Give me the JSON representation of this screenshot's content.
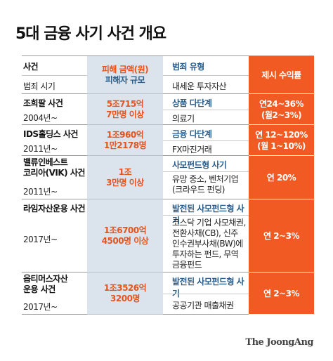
{
  "title": "5대 금융 사기 사건 개요",
  "headers": {
    "case": "사건",
    "period": "범죄 시기",
    "damage_amount": "피해 금액(원)",
    "victims": "피해자 규모",
    "crime_type": "범죄 유형",
    "details": "내세운 투자자산",
    "returns": "제시 수익률"
  },
  "rows": [
    {
      "name": "조희팔 사건",
      "year": "2004년~",
      "amount": "5조715억",
      "victims": "7만명 이상",
      "type": "상품 다단계",
      "asset": "의료기",
      "returns_line1": "연24~36%",
      "returns_line2": "(월2~3%)"
    },
    {
      "name": "IDS홀딩스 사건",
      "year": "2011년~",
      "amount": "1조960억",
      "victims": "1만2178명",
      "type": "금융 다단계",
      "asset": "FX마진거래",
      "returns_line1": "연 12~120%",
      "returns_line2": "(월 1~10%)"
    },
    {
      "name_line1": "밸류인베스트",
      "name_line2": "코리아(VIK) 사건",
      "year": "2011년~",
      "amount": "1조",
      "victims": "3만명 이상",
      "type": "사모펀드형 사기",
      "asset_line1": "유망 중소, 벤처기업",
      "asset_line2": "(크라우드 펀딩)",
      "returns_line1": "연 20%"
    },
    {
      "name": "라임자산운용 사건",
      "year": "2017년~",
      "amount": "1조6700억",
      "victims": "4500명 이상",
      "type": "발전된 사모펀드형 사기",
      "asset_line1": "코스닥 기업 사모채권,",
      "asset_line2": "전환사채(CB), 신주",
      "asset_line3": "인수권부사채(BW)에",
      "asset_line4": "투자하는 펀드, 무역",
      "asset_line5": "금융펀드",
      "returns_line1": "연 2~3%"
    },
    {
      "name_line1": "옵티머스자산",
      "name_line2": "운용 사건",
      "year": "2017년~",
      "amount": "1조3526억",
      "victims": "3200명",
      "type": "발전된 사모펀드형 사기",
      "asset": "공공기관 매출채권",
      "returns_line1": "연 2~3%"
    }
  ],
  "credit": "The JoongAng"
}
